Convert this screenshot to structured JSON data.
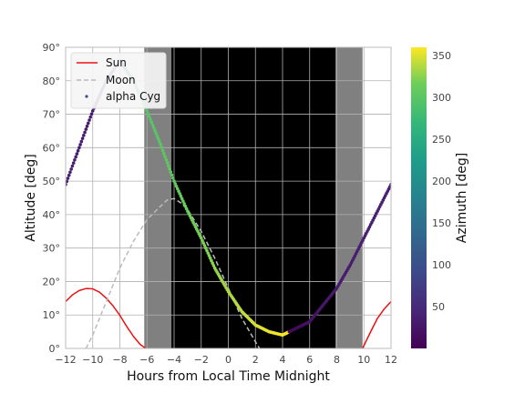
{
  "chart_data": {
    "type": "line",
    "xlabel": "Hours from Local Time Midnight",
    "ylabel": "Altitude [deg]",
    "xlim": [
      -12,
      12
    ],
    "ylim": [
      0,
      90
    ],
    "xticks": [
      -12,
      -10,
      -8,
      -6,
      -4,
      -2,
      0,
      2,
      4,
      6,
      8,
      10,
      12
    ],
    "xtick_labels": [
      "−12",
      "−10",
      "−8",
      "−6",
      "−4",
      "−2",
      "0",
      "2",
      "4",
      "6",
      "8",
      "10",
      "12"
    ],
    "yticks": [
      0,
      10,
      20,
      30,
      40,
      50,
      60,
      70,
      80,
      90
    ],
    "ytick_labels": [
      "0°",
      "10°",
      "20°",
      "30°",
      "40°",
      "50°",
      "60°",
      "70°",
      "80°",
      "90°"
    ],
    "grid": true,
    "legend_position": "upper-left",
    "twilight_bands": [
      {
        "x0": -6.2,
        "x1": -4.2,
        "color": "#808080"
      },
      {
        "x0": -4.2,
        "x1": 7.9,
        "color": "#000000"
      },
      {
        "x0": 7.9,
        "x1": 9.9,
        "color": "#808080"
      }
    ],
    "series": [
      {
        "name": "Sun",
        "style": "solid",
        "color": "#ee1111",
        "x": [
          -12,
          -11.5,
          -11,
          -10.5,
          -10,
          -9.5,
          -9,
          -8.5,
          -8,
          -7.5,
          -7,
          -6.5,
          -6.1,
          9.9,
          10.5,
          11,
          11.5,
          12
        ],
        "y": [
          14,
          16,
          17.3,
          17.9,
          17.8,
          16.8,
          15,
          12.7,
          9.9,
          6.6,
          3.6,
          1.2,
          0,
          0,
          5,
          9,
          11.8,
          14
        ]
      },
      {
        "name": "Moon",
        "style": "dashed",
        "color": "#bbbbbb",
        "x": [
          -10.5,
          -10,
          -9,
          -8,
          -7,
          -6,
          -5,
          -4.5,
          -4,
          -3.5,
          -3,
          -2,
          -1,
          0,
          1,
          2,
          2.3
        ],
        "y": [
          0,
          4,
          14,
          24,
          32,
          38.5,
          42.5,
          44.4,
          44.8,
          43.5,
          41.5,
          35,
          27,
          18,
          9,
          2,
          0
        ]
      },
      {
        "name": "alpha Cyg",
        "style": "scatter",
        "colormap": "viridis",
        "x": [
          -12,
          -11,
          -10,
          -9,
          -8,
          -7,
          -6,
          -5,
          -4,
          -3,
          -2,
          -1,
          0,
          1,
          2,
          3,
          4,
          5,
          6,
          7,
          8,
          9,
          10,
          11,
          12
        ],
        "y": [
          49,
          60,
          71,
          80,
          86,
          80,
          71,
          61,
          50,
          41,
          33,
          24,
          17,
          11,
          7,
          5,
          4,
          6,
          8,
          13,
          18,
          25,
          33,
          41,
          49
        ],
        "azimuth": [
          38,
          35,
          30,
          45,
          100,
          270,
          295,
          300,
          305,
          312,
          318,
          325,
          333,
          340,
          348,
          353,
          358,
          10,
          20,
          25,
          30,
          33,
          36,
          37,
          38
        ]
      }
    ],
    "colorbar": {
      "label": "Azimuth [deg]",
      "colormap": "viridis",
      "range": [
        0,
        360
      ],
      "ticks": [
        50,
        100,
        150,
        200,
        250,
        300,
        350
      ],
      "tick_labels": [
        "50",
        "100",
        "150",
        "200",
        "250",
        "300",
        "350"
      ]
    },
    "legend": [
      "Sun",
      "Moon",
      "alpha Cyg"
    ]
  }
}
